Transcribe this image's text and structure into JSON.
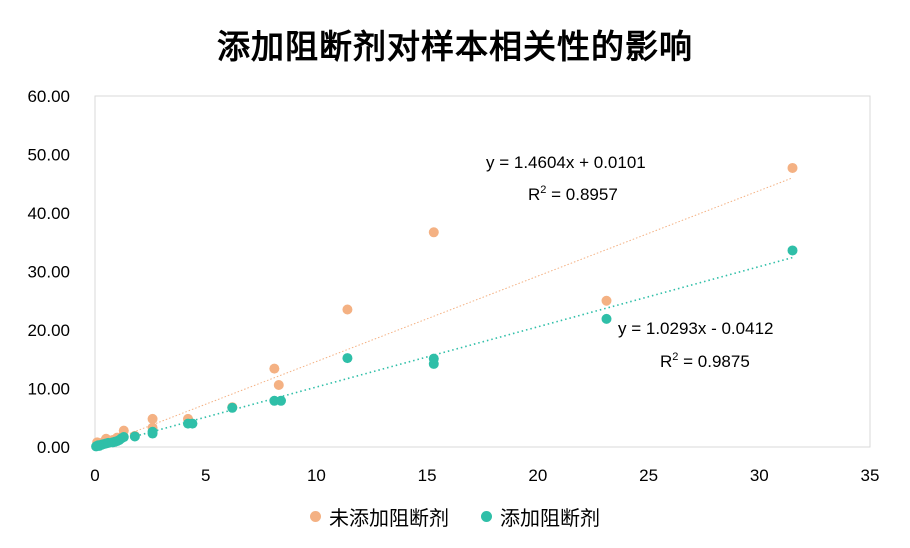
{
  "chart_data": {
    "type": "scatter",
    "title": "添加阻断剂对样本相关性的影响",
    "xlim": [
      0,
      35
    ],
    "ylim": [
      0,
      60
    ],
    "x_ticks": [
      "0",
      "5",
      "10",
      "15",
      "20",
      "25",
      "30",
      "35"
    ],
    "y_ticks": [
      "0.00",
      "10.00",
      "20.00",
      "30.00",
      "40.00",
      "50.00",
      "60.00"
    ],
    "grid": "none",
    "legend_position": "bottom",
    "series": [
      {
        "name": "未添加阻断剂",
        "color": "#F4B183",
        "trendline": {
          "slope": 1.4604,
          "intercept": 0.0101,
          "equation": "y = 1.4604x + 0.0101",
          "r2_label": "R",
          "r2_sup": "2",
          "r2_value": " = 0.8957"
        },
        "points": [
          [
            0.1,
            0.8
          ],
          [
            0.15,
            0.3
          ],
          [
            0.2,
            0.5
          ],
          [
            0.3,
            0.6
          ],
          [
            0.4,
            0.9
          ],
          [
            0.5,
            1.4
          ],
          [
            0.6,
            0.9
          ],
          [
            0.8,
            1.2
          ],
          [
            1.0,
            1.6
          ],
          [
            1.2,
            1.7
          ],
          [
            1.3,
            2.8
          ],
          [
            1.8,
            1.9
          ],
          [
            2.6,
            3.3
          ],
          [
            2.6,
            4.8
          ],
          [
            4.2,
            4.8
          ],
          [
            6.2,
            6.8
          ],
          [
            8.1,
            13.4
          ],
          [
            8.3,
            10.6
          ],
          [
            11.4,
            23.5
          ],
          [
            15.3,
            36.7
          ],
          [
            23.1,
            25.0
          ],
          [
            31.5,
            47.7
          ]
        ]
      },
      {
        "name": "添加阻断剂",
        "color": "#2FBFA8",
        "trendline": {
          "slope": 1.0293,
          "intercept": -0.0412,
          "equation": "y = 1.0293x - 0.0412",
          "r2_label": "R",
          "r2_sup": "2",
          "r2_value": " = 0.9875"
        },
        "points": [
          [
            0.05,
            0.1
          ],
          [
            0.1,
            0.2
          ],
          [
            0.15,
            0.3
          ],
          [
            0.2,
            0.2
          ],
          [
            0.3,
            0.4
          ],
          [
            0.4,
            0.5
          ],
          [
            0.5,
            0.6
          ],
          [
            0.6,
            0.7
          ],
          [
            0.8,
            0.8
          ],
          [
            0.9,
            0.9
          ],
          [
            1.0,
            1.0
          ],
          [
            1.1,
            1.2
          ],
          [
            1.2,
            1.5
          ],
          [
            1.3,
            1.7
          ],
          [
            1.8,
            1.8
          ],
          [
            2.6,
            2.3
          ],
          [
            2.6,
            2.6
          ],
          [
            4.2,
            4.0
          ],
          [
            4.4,
            4.0
          ],
          [
            6.2,
            6.7
          ],
          [
            8.1,
            7.9
          ],
          [
            8.4,
            7.9
          ],
          [
            11.4,
            15.2
          ],
          [
            15.3,
            14.2
          ],
          [
            15.3,
            15.1
          ],
          [
            23.1,
            21.9
          ],
          [
            31.5,
            33.6
          ]
        ]
      }
    ]
  }
}
